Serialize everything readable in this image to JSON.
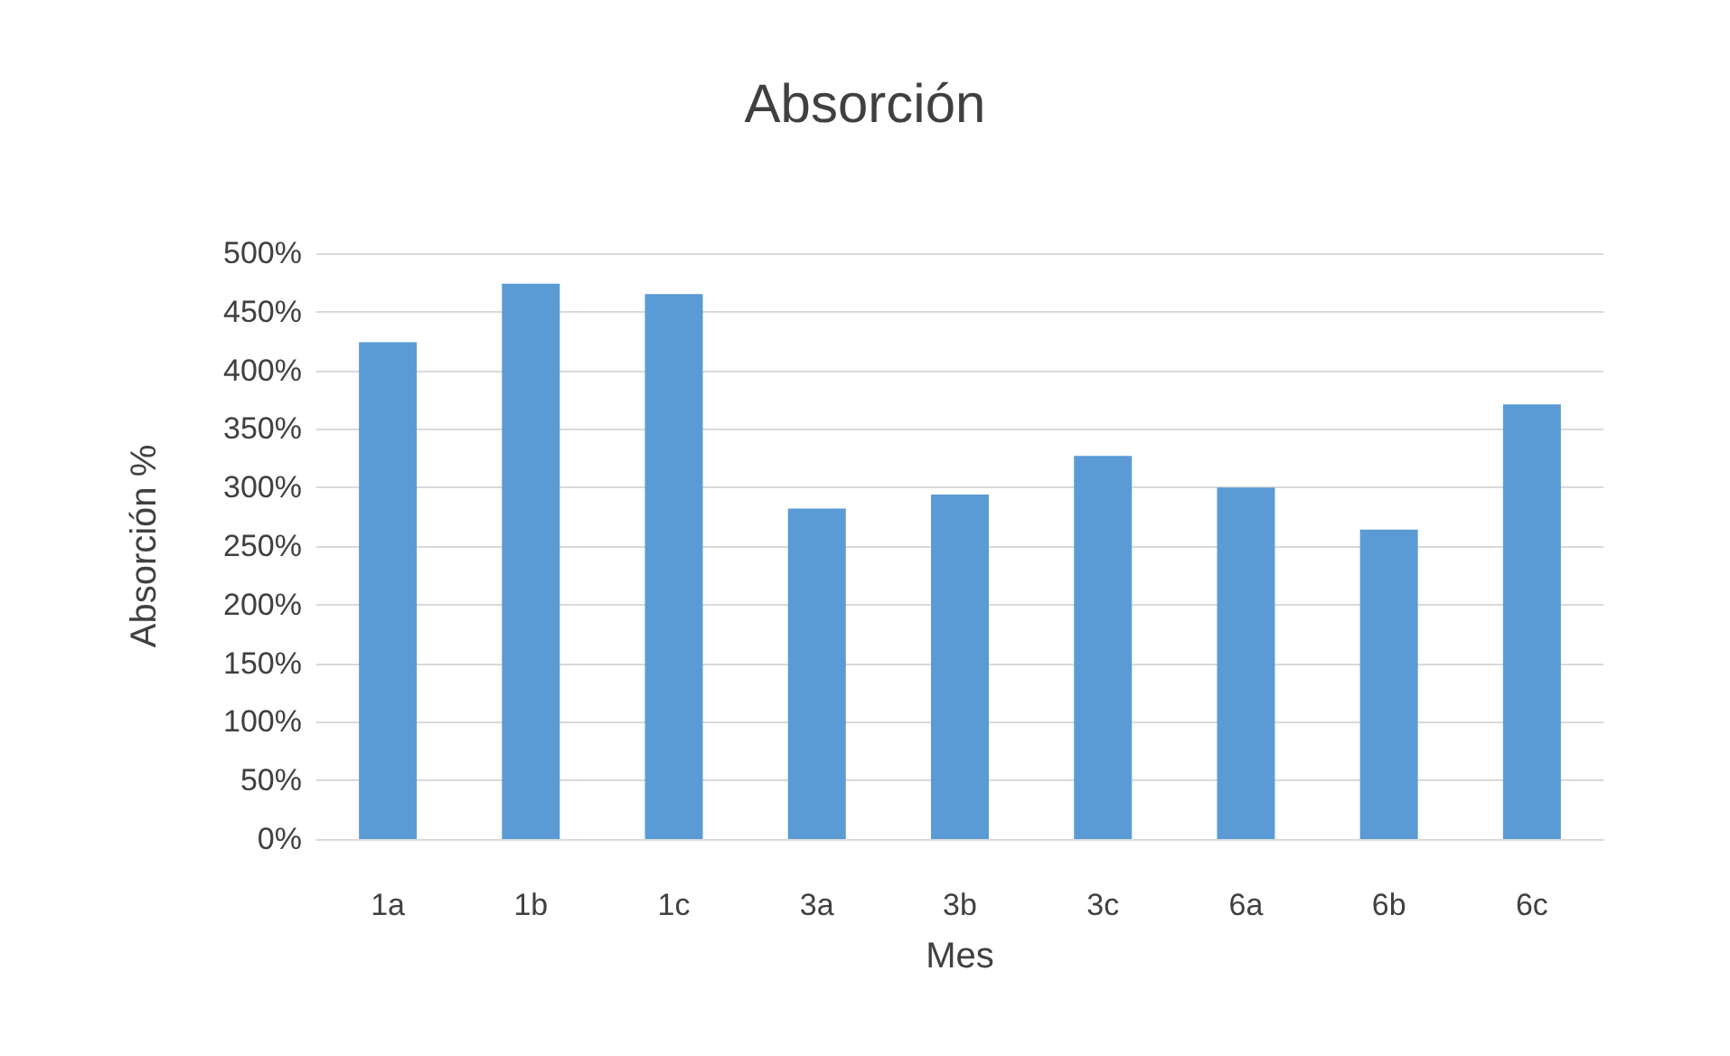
{
  "chart_data": {
    "type": "bar",
    "title": "Absorción",
    "xlabel": "Mes",
    "ylabel": "Absorción %",
    "categories": [
      "1a",
      "1b",
      "1c",
      "3a",
      "3b",
      "3c",
      "6a",
      "6b",
      "6c"
    ],
    "values": [
      424,
      474,
      465,
      282,
      294,
      327,
      300,
      264,
      371
    ],
    "color": "#5b9bd5",
    "ylim": [
      0,
      500
    ],
    "yticks": [
      {
        "value": 0,
        "label": "0%"
      },
      {
        "value": 50,
        "label": "50%"
      },
      {
        "value": 100,
        "label": "100%"
      },
      {
        "value": 150,
        "label": "150%"
      },
      {
        "value": 200,
        "label": "200%"
      },
      {
        "value": 250,
        "label": "250%"
      },
      {
        "value": 300,
        "label": "300%"
      },
      {
        "value": 350,
        "label": "350%"
      },
      {
        "value": 400,
        "label": "400%"
      },
      {
        "value": 450,
        "label": "450%"
      },
      {
        "value": 500,
        "label": "500%"
      }
    ],
    "grid": true
  }
}
